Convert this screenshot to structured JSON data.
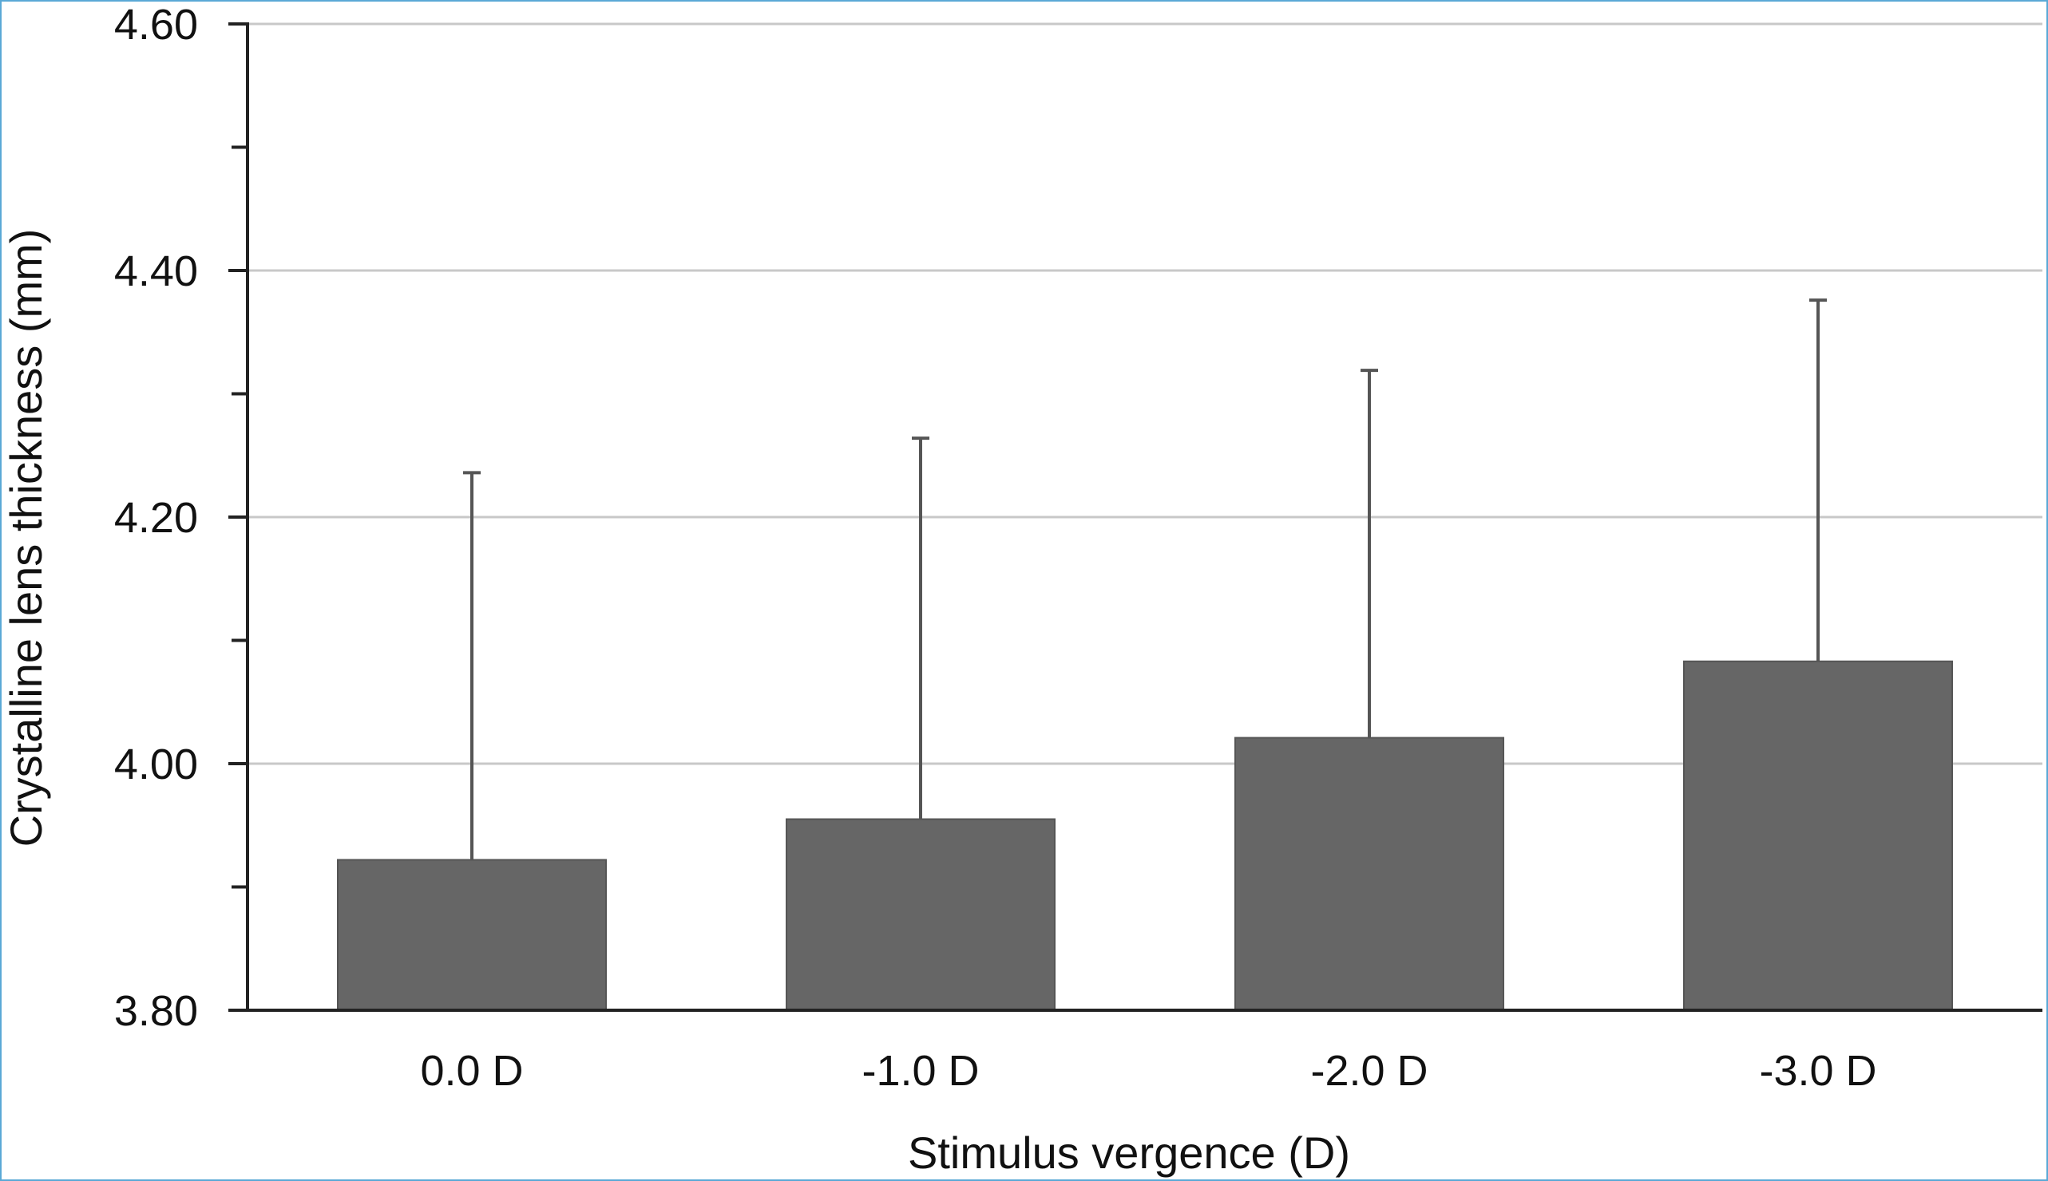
{
  "chart_data": {
    "type": "bar",
    "title": "",
    "xlabel": "Stimulus vergence (D)",
    "ylabel": "Crystalline lens thickness (mm)",
    "categories": [
      "0.0 D",
      "-1.0 D",
      "-2.0 D",
      "-3.0 D"
    ],
    "values": [
      3.922,
      3.955,
      4.021,
      4.083
    ],
    "error_upper": [
      4.236,
      4.264,
      4.319,
      4.376
    ],
    "ylim": [
      3.8,
      4.6
    ],
    "yticks": [
      3.8,
      4.0,
      4.2,
      4.4,
      4.6
    ],
    "ytick_labels": [
      "3.80",
      "4.00",
      "4.20",
      "4.40",
      "4.60"
    ],
    "grid": true,
    "legend": "none",
    "colors": {
      "bar": "#666666",
      "grid": "#c8c8c8",
      "axis": "#222222",
      "error_bar": "#555555",
      "border": "#5aa9d6"
    }
  }
}
